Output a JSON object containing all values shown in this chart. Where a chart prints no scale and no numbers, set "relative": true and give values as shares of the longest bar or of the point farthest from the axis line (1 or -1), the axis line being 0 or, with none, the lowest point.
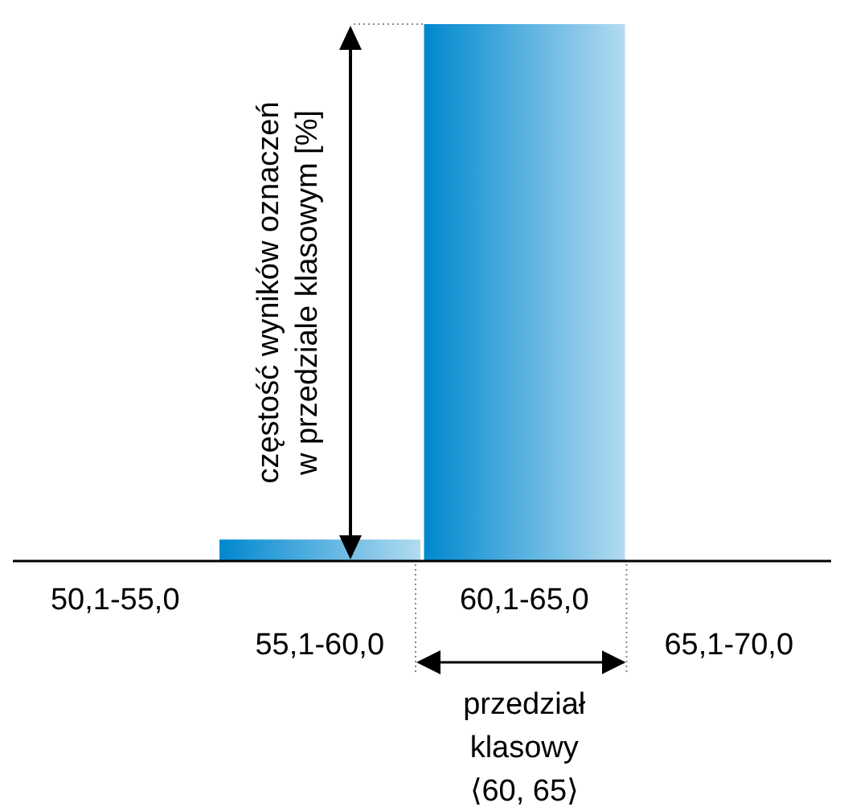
{
  "chart_data": {
    "type": "bar",
    "relative": true,
    "categories": [
      "50,1-55,0",
      "55,1-60,0",
      "60,1-65,0",
      "65,1-70,0"
    ],
    "values": [
      0,
      0.04,
      1,
      0
    ],
    "color": "#0088cf",
    "ylabel": "częstość wyników oznaczeń\nw przedziale klasowym [%]",
    "annotations": [
      "przedział\nklasowy\n⟨60, 65⟩"
    ]
  }
}
